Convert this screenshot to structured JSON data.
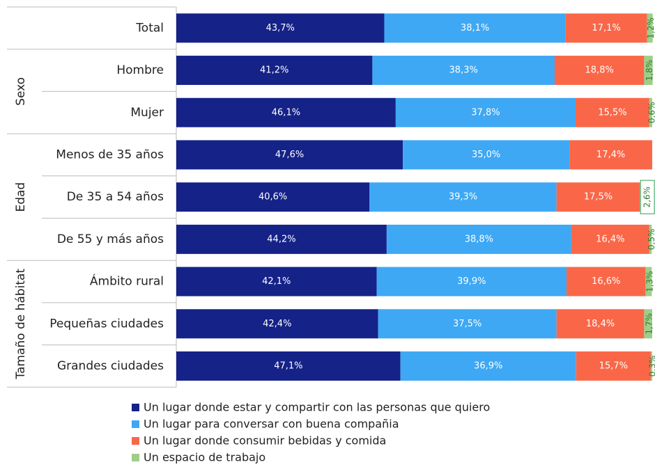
{
  "chart_data": {
    "type": "stacked-bar-horizontal",
    "categories": [
      "Total",
      "Hombre",
      "Mujer",
      "Menos de 35 años",
      "De 35 a 54 años",
      "De 55 y más años",
      "Ámbito rural",
      "Pequeñas ciudades",
      "Grandes ciudades"
    ],
    "row_groups": [
      null,
      "Sexo",
      "Sexo",
      "Edad",
      "Edad",
      "Edad",
      "Tamaño de hábitat",
      "Tamaño de hábitat",
      "Tamaño de hábitat"
    ],
    "xlim": [
      0,
      100
    ],
    "series": [
      {
        "name": "Un lugar donde estar y compartir con las personas que quiero",
        "color": "#152288",
        "values": [
          43.7,
          41.2,
          46.1,
          47.6,
          40.6,
          44.2,
          42.1,
          42.4,
          47.1
        ],
        "value_labels": [
          "43,7%",
          "41,2%",
          "46,1%",
          "47,6%",
          "40,6%",
          "44,2%",
          "42,1%",
          "42,4%",
          "47,1%"
        ]
      },
      {
        "name": "Un lugar para conversar con buena compañia",
        "color": "#3ea8f4",
        "values": [
          38.1,
          38.3,
          37.8,
          35.0,
          39.3,
          38.8,
          39.9,
          37.5,
          36.9
        ],
        "value_labels": [
          "38,1%",
          "38,3%",
          "37,8%",
          "35,0%",
          "39,3%",
          "38,8%",
          "39,9%",
          "37,5%",
          "36,9%"
        ]
      },
      {
        "name": "Un lugar donde consumir bebidas y comida",
        "color": "#fa6748",
        "values": [
          17.1,
          18.8,
          15.5,
          17.4,
          17.5,
          16.4,
          16.6,
          18.4,
          15.7
        ],
        "value_labels": [
          "17,1%",
          "18,8%",
          "15,5%",
          "17,4%",
          "17,5%",
          "16,4%",
          "16,6%",
          "18,4%",
          "15,7%"
        ]
      },
      {
        "name": "Un espacio de trabajo",
        "color": "#9fce8a",
        "values": [
          1.2,
          1.8,
          0.6,
          null,
          2.6,
          0.5,
          1.3,
          1.7,
          0.3
        ],
        "value_labels": [
          "1,2%",
          "1,8%",
          "0,6%",
          null,
          "2,6%",
          "0,5%",
          "1,3%",
          "1,7%",
          "0,3%"
        ]
      }
    ]
  }
}
